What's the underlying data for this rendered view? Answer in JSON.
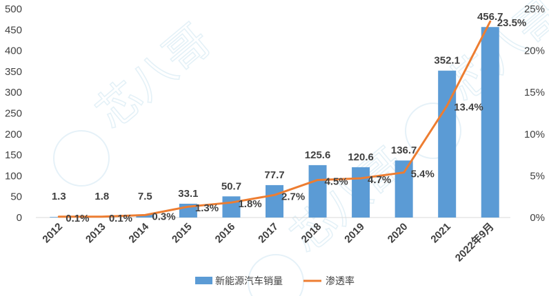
{
  "watermark": "芯八哥",
  "chart_data": {
    "type": "bar",
    "categories": [
      "2012",
      "2013",
      "2014",
      "2015",
      "2016",
      "2017",
      "2018",
      "2019",
      "2020",
      "2021",
      "2022年9月"
    ],
    "series": [
      {
        "name": "新能源汽车销量",
        "type": "bar",
        "axis": "left",
        "color": "#5b9bd5",
        "values": [
          1.3,
          1.8,
          7.5,
          33.1,
          50.7,
          77.7,
          125.6,
          120.6,
          136.7,
          352.1,
          456.7
        ],
        "labels": [
          "1.3",
          "1.8",
          "7.5",
          "33.1",
          "50.7",
          "77.7",
          "125.6",
          "120.6",
          "136.7",
          "352.1",
          "456.7"
        ]
      },
      {
        "name": "渗透率",
        "type": "line",
        "axis": "right",
        "color": "#ed7d31",
        "values": [
          0.1,
          0.1,
          0.3,
          1.3,
          1.8,
          2.7,
          4.5,
          4.7,
          5.4,
          13.4,
          23.5
        ],
        "labels": [
          "0.1%",
          "0.1%",
          "0.3%",
          "1.3%",
          "1.8%",
          "2.7%",
          "4.5%",
          "4.7%",
          "5.4%",
          "13.4%",
          "23.5%"
        ]
      }
    ],
    "yleft": {
      "min": 0,
      "max": 500,
      "ticks": [
        "0",
        "50",
        "100",
        "150",
        "200",
        "250",
        "300",
        "350",
        "400",
        "450",
        "500"
      ]
    },
    "yright": {
      "min": 0,
      "max": 25,
      "ticks": [
        "0%",
        "5%",
        "10%",
        "15%",
        "20%",
        "25%"
      ]
    },
    "grid": false,
    "legend_position": "bottom"
  }
}
